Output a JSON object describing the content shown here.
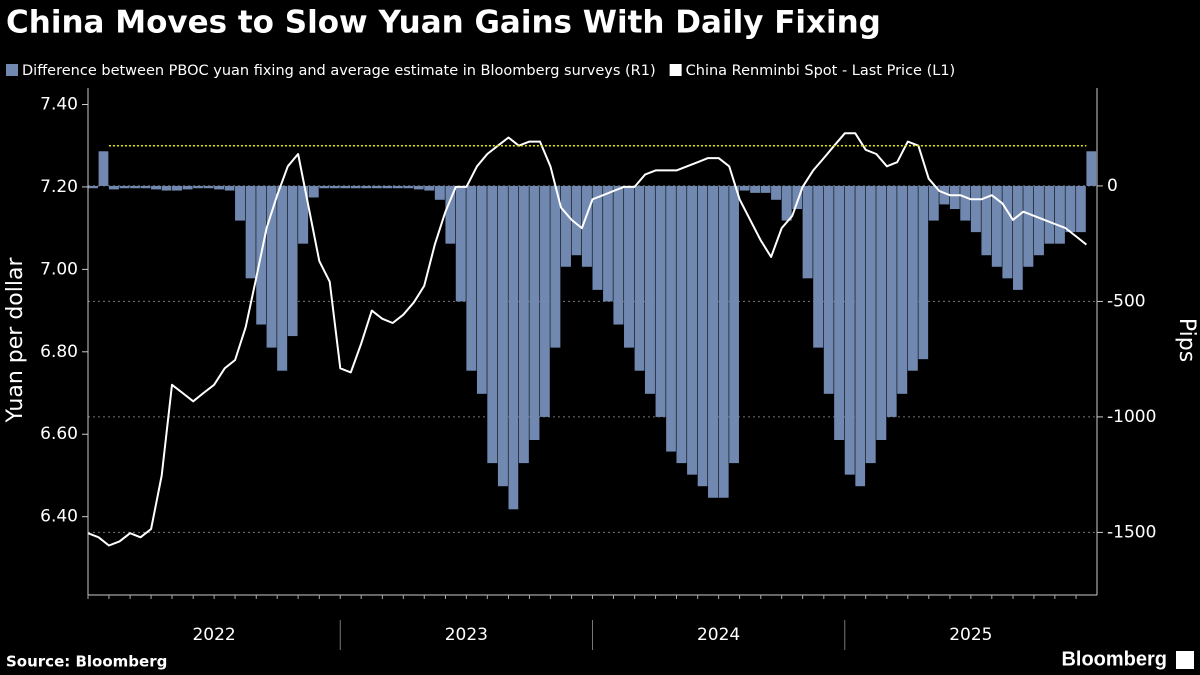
{
  "chart_data": {
    "type": "bar-line",
    "title": "China Moves to Slow Yuan Gains With Daily Fixing",
    "ylabel": "Yuan per dollar",
    "y2label": "Pips",
    "source": "Source: Bloomberg",
    "brand": "Bloomberg",
    "xlim": [
      2022,
      2026
    ],
    "xticks": [
      {
        "value": 2022.5,
        "label": "2022"
      },
      {
        "value": 2023.5,
        "label": "2023"
      },
      {
        "value": 2024.5,
        "label": "2024"
      },
      {
        "value": 2025.5,
        "label": "2025"
      }
    ],
    "ylim": [
      6.21,
      7.44
    ],
    "yticks": [
      {
        "value": 6.4,
        "label": "6.40"
      },
      {
        "value": 6.6,
        "label": "6.60"
      },
      {
        "value": 6.8,
        "label": "6.80"
      },
      {
        "value": 7.0,
        "label": "7.00"
      },
      {
        "value": 7.2,
        "label": "7.20"
      },
      {
        "value": 7.4,
        "label": "7.40"
      }
    ],
    "y2lim": [
      -1771,
      424
    ],
    "y2ticks": [
      -1500,
      -1000,
      -500,
      0
    ],
    "grid": true,
    "reference_line": {
      "value": 7.3,
      "color": "#e6e600"
    },
    "x": [
      2022,
      2022.042,
      2022.083,
      2022.125,
      2022.167,
      2022.208,
      2022.25,
      2022.292,
      2022.333,
      2022.375,
      2022.417,
      2022.458,
      2022.5,
      2022.542,
      2022.583,
      2022.625,
      2022.667,
      2022.708,
      2022.75,
      2022.792,
      2022.833,
      2022.875,
      2022.917,
      2022.958,
      2023,
      2023.042,
      2023.083,
      2023.125,
      2023.167,
      2023.208,
      2023.25,
      2023.292,
      2023.333,
      2023.375,
      2023.417,
      2023.458,
      2023.5,
      2023.542,
      2023.583,
      2023.625,
      2023.667,
      2023.708,
      2023.75,
      2023.792,
      2023.833,
      2023.875,
      2023.917,
      2023.958,
      2024,
      2024.042,
      2024.083,
      2024.125,
      2024.167,
      2024.208,
      2024.25,
      2024.292,
      2024.333,
      2024.375,
      2024.417,
      2024.458,
      2024.5,
      2024.542,
      2024.583,
      2024.625,
      2024.667,
      2024.708,
      2024.75,
      2024.792,
      2024.833,
      2024.875,
      2024.917,
      2024.958,
      2025,
      2025.042,
      2025.083,
      2025.125,
      2025.167,
      2025.208,
      2025.25,
      2025.292,
      2025.333,
      2025.375,
      2025.417,
      2025.458,
      2025.5,
      2025.542,
      2025.583,
      2025.625,
      2025.667,
      2025.708,
      2025.75,
      2025.792,
      2025.833,
      2025.875,
      2025.917,
      2025.958
    ],
    "series": [
      {
        "name": "Difference between PBOC yuan fixing and average estimate in Bloomberg surveys (R1)",
        "type": "bar",
        "axis": "y2",
        "color": "#7189b1",
        "values": [
          -10,
          150,
          -15,
          -10,
          -10,
          -10,
          -15,
          -20,
          -20,
          -15,
          -10,
          -10,
          -15,
          -20,
          -150,
          -400,
          -600,
          -700,
          -800,
          -650,
          -250,
          -50,
          -10,
          -10,
          -10,
          -10,
          -10,
          -10,
          -10,
          -10,
          -10,
          -15,
          -20,
          -60,
          -250,
          -500,
          -800,
          -900,
          -1200,
          -1300,
          -1400,
          -1200,
          -1100,
          -1000,
          -700,
          -350,
          -300,
          -350,
          -450,
          -500,
          -600,
          -700,
          -800,
          -900,
          -1000,
          -1150,
          -1200,
          -1250,
          -1300,
          -1350,
          -1350,
          -1200,
          -20,
          -30,
          -30,
          -60,
          -150,
          -100,
          -400,
          -700,
          -900,
          -1100,
          -1250,
          -1300,
          -1200,
          -1100,
          -1000,
          -900,
          -800,
          -750,
          -150,
          -80,
          -100,
          -150,
          -200,
          -300,
          -350,
          -400,
          -450,
          -350,
          -300,
          -250,
          -250,
          -200,
          -200,
          150
        ]
      },
      {
        "name": "China Renminbi Spot - Last Price (L1)",
        "type": "line",
        "axis": "y",
        "color": "#ffffff",
        "values": [
          6.36,
          6.35,
          6.33,
          6.34,
          6.36,
          6.35,
          6.37,
          6.5,
          6.72,
          6.7,
          6.68,
          6.7,
          6.72,
          6.76,
          6.78,
          6.86,
          6.98,
          7.1,
          7.18,
          7.25,
          7.28,
          7.15,
          7.02,
          6.97,
          6.76,
          6.75,
          6.82,
          6.9,
          6.88,
          6.87,
          6.89,
          6.92,
          6.96,
          7.06,
          7.14,
          7.2,
          7.2,
          7.25,
          7.28,
          7.3,
          7.32,
          7.3,
          7.31,
          7.31,
          7.25,
          7.15,
          7.12,
          7.1,
          7.17,
          7.18,
          7.19,
          7.2,
          7.2,
          7.23,
          7.24,
          7.24,
          7.24,
          7.25,
          7.26,
          7.27,
          7.27,
          7.25,
          7.17,
          7.12,
          7.07,
          7.03,
          7.1,
          7.13,
          7.2,
          7.24,
          7.27,
          7.3,
          7.33,
          7.33,
          7.29,
          7.28,
          7.25,
          7.26,
          7.31,
          7.3,
          7.22,
          7.19,
          7.18,
          7.18,
          7.17,
          7.17,
          7.18,
          7.16,
          7.12,
          7.14,
          7.13,
          7.12,
          7.11,
          7.1,
          7.08,
          7.06
        ]
      }
    ]
  }
}
